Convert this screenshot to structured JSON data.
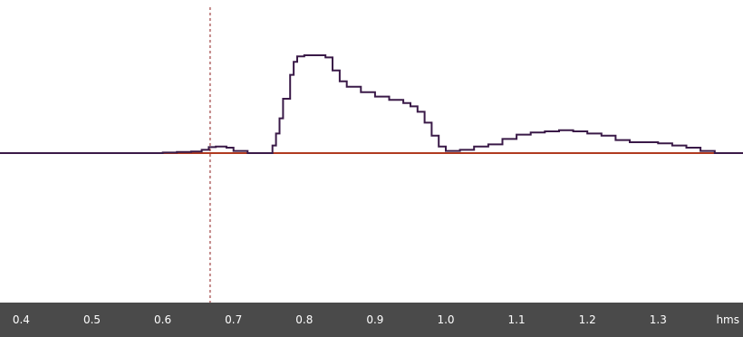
{
  "chart_data": {
    "type": "line",
    "x_unit": "hms",
    "x_ticks": [
      0.4,
      0.5,
      0.6,
      0.7,
      0.8,
      0.9,
      1.0,
      1.1,
      1.2,
      1.3
    ],
    "x_tick_labels": [
      "0.4",
      "0.5",
      "0.6",
      "0.7",
      "0.8",
      "0.9",
      "1.0",
      "1.1",
      "1.2",
      "1.3"
    ],
    "xlim": [
      0.37,
      1.42
    ],
    "ylim": [
      -1.0,
      1.0
    ],
    "cursor_x": 0.667,
    "grid": false,
    "series": [
      {
        "color": "#3a1a48",
        "style": "step",
        "x": [
          0.37,
          0.6,
          0.62,
          0.64,
          0.655,
          0.665,
          0.675,
          0.69,
          0.7,
          0.72,
          0.75,
          0.755,
          0.76,
          0.765,
          0.77,
          0.78,
          0.785,
          0.79,
          0.8,
          0.825,
          0.83,
          0.84,
          0.85,
          0.86,
          0.88,
          0.9,
          0.92,
          0.94,
          0.95,
          0.96,
          0.97,
          0.98,
          0.99,
          1.0,
          1.02,
          1.04,
          1.06,
          1.08,
          1.1,
          1.12,
          1.14,
          1.16,
          1.18,
          1.2,
          1.22,
          1.24,
          1.26,
          1.28,
          1.3,
          1.32,
          1.34,
          1.36,
          1.38,
          1.42
        ],
        "y": [
          0.0,
          0.005,
          0.01,
          0.015,
          0.03,
          0.055,
          0.06,
          0.05,
          0.02,
          0.0,
          0.0,
          0.07,
          0.18,
          0.32,
          0.5,
          0.72,
          0.84,
          0.89,
          0.9,
          0.9,
          0.88,
          0.76,
          0.66,
          0.61,
          0.56,
          0.52,
          0.49,
          0.46,
          0.43,
          0.38,
          0.28,
          0.16,
          0.06,
          0.02,
          0.03,
          0.06,
          0.08,
          0.13,
          0.17,
          0.19,
          0.2,
          0.21,
          0.2,
          0.18,
          0.16,
          0.12,
          0.1,
          0.1,
          0.09,
          0.07,
          0.05,
          0.02,
          0.0,
          0.0
        ]
      },
      {
        "color": "#b03a20",
        "style": "line",
        "x": [
          0.37,
          1.42
        ],
        "y": [
          0.0,
          0.0
        ]
      }
    ]
  }
}
